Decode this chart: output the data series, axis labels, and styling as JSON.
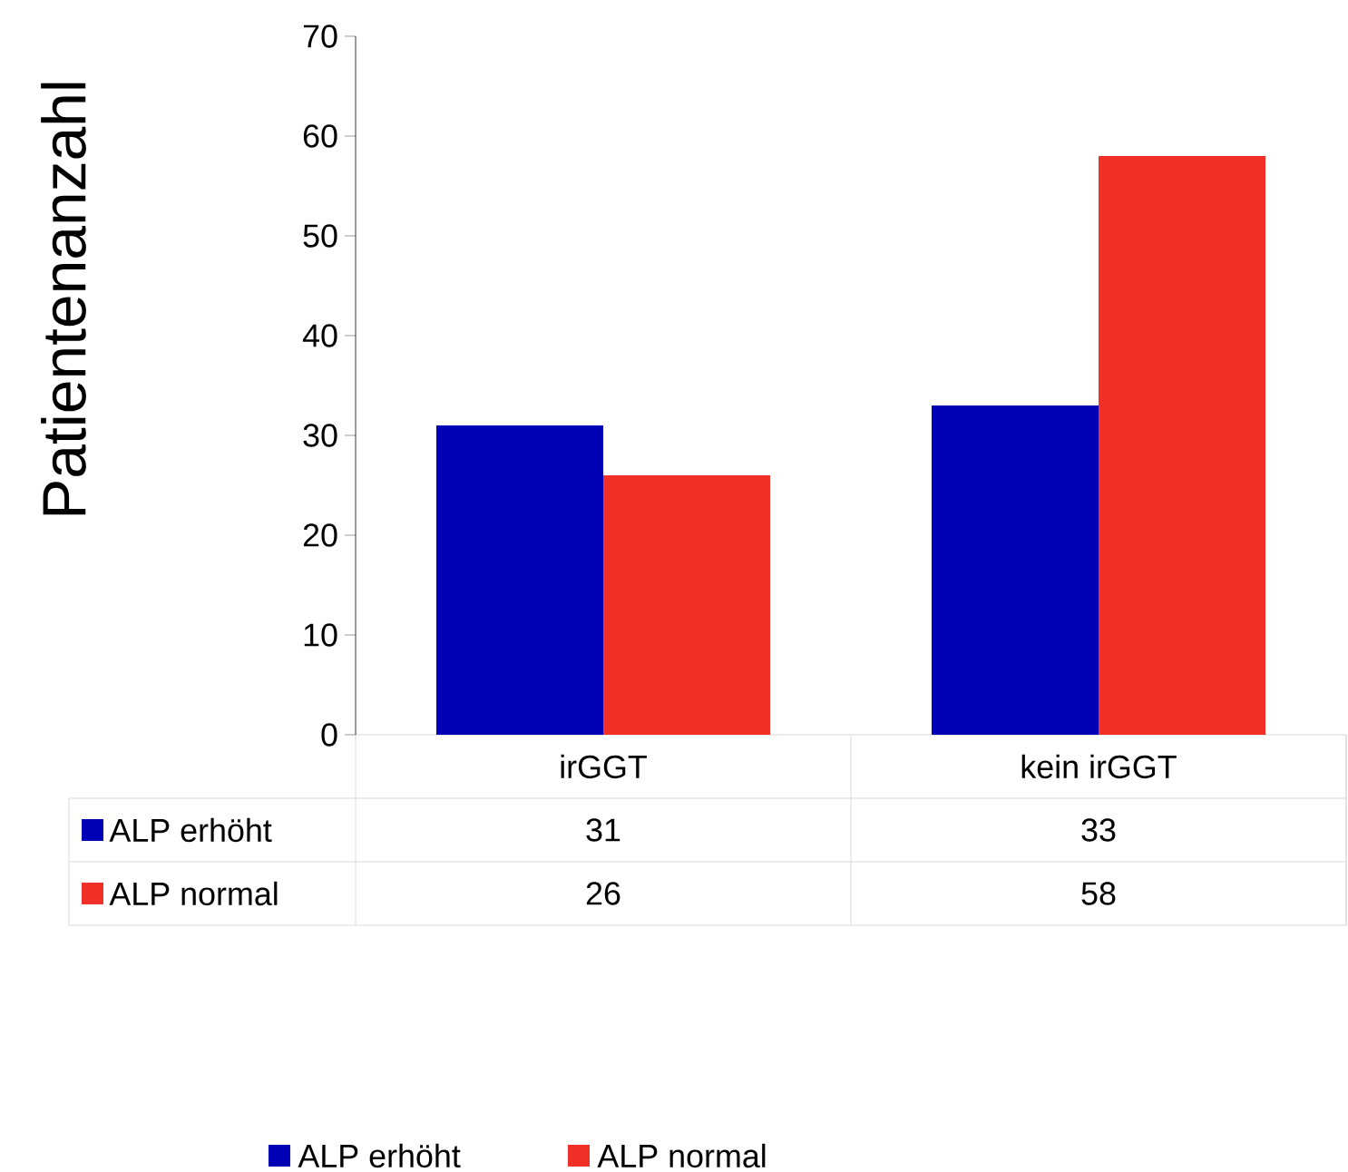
{
  "chart_data": {
    "type": "bar",
    "ylabel": "Patientenanzahl",
    "categories": [
      "irGGT",
      "kein irGGT"
    ],
    "series": [
      {
        "name": "ALP erhöht",
        "color": "#0000b4",
        "values": [
          31,
          33
        ]
      },
      {
        "name": "ALP normal",
        "color": "#f03027",
        "values": [
          26,
          58
        ]
      }
    ],
    "ylim": [
      0,
      70
    ],
    "yticks": [
      0,
      10,
      20,
      30,
      40,
      50,
      60,
      70
    ],
    "data_labels": true,
    "legend": "bottom",
    "grid": false
  }
}
